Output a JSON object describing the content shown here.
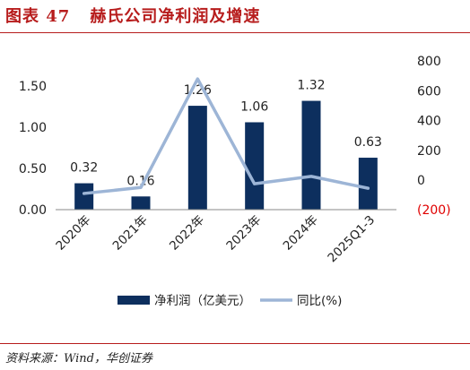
{
  "figure": {
    "label": "图表 47",
    "title_text": "赫氏公司净利润及增速",
    "source": "资料来源：Wind，华创证券"
  },
  "colors": {
    "bar": "#0d2f5e",
    "line": "#9db5d6",
    "title": "#b71c1c",
    "negative_tick": "#e00000"
  },
  "chart_data": {
    "type": "bar",
    "categories": [
      "2020年",
      "2021年",
      "2022年",
      "2023年",
      "2024年",
      "2025Q1-3"
    ],
    "series": [
      {
        "name": "净利润（亿美元）",
        "type": "bar",
        "axis": "left",
        "values": [
          0.32,
          0.16,
          1.26,
          1.06,
          1.32,
          0.63
        ],
        "data_labels": [
          "0.32",
          "0.16",
          "1.26",
          "1.06",
          "1.32",
          "0.63"
        ]
      },
      {
        "name": "同比(%)",
        "type": "line",
        "axis": "right",
        "values": [
          -90,
          -50,
          680,
          -25,
          25,
          -55
        ]
      }
    ],
    "y_left": {
      "range": [
        0,
        1.5
      ],
      "ticks": [
        "0.00",
        "0.50",
        "1.00",
        "1.50"
      ]
    },
    "y_right": {
      "range": [
        -200,
        800
      ],
      "ticks": [
        "(200)",
        "0",
        "200",
        "400",
        "600",
        "800"
      ]
    },
    "grid": false,
    "legend": "bottom"
  }
}
